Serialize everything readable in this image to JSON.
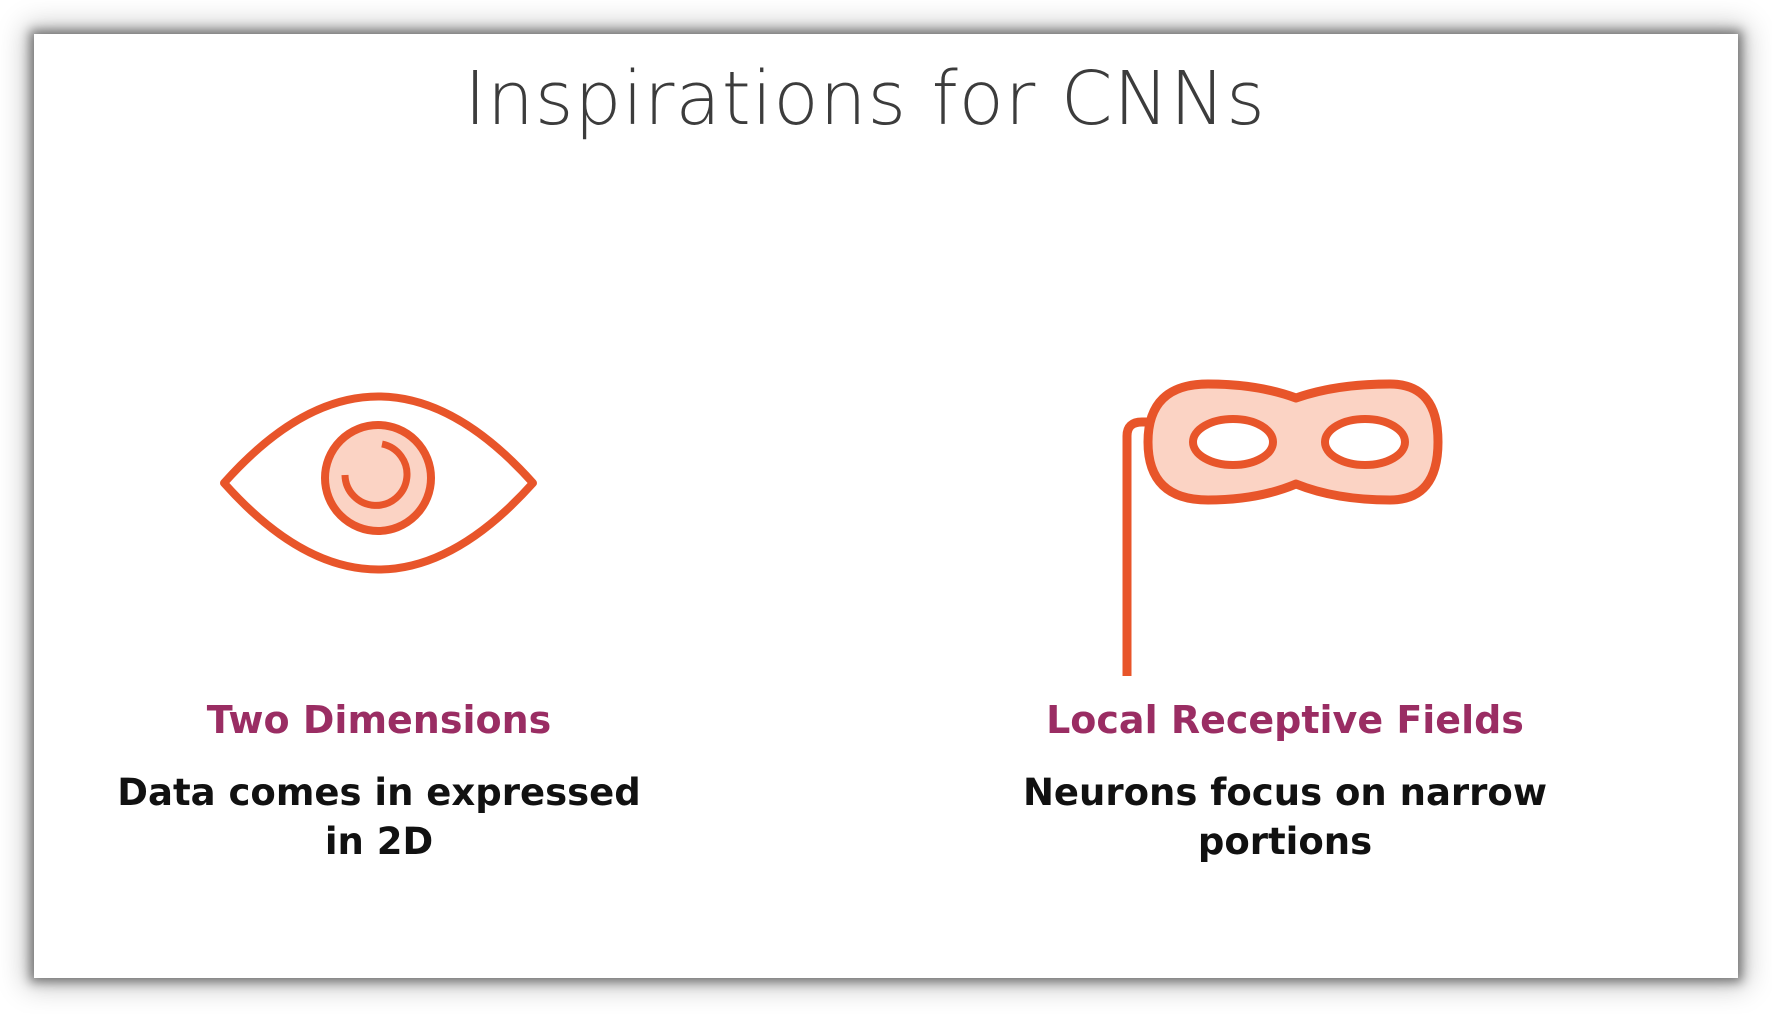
{
  "slide": {
    "title": "Inspirations for CNNs"
  },
  "colors": {
    "icon_stroke": "#e8552a",
    "icon_fill": "#fbd3c4",
    "heading": "#9a2d63",
    "body_text": "#111111",
    "title_text": "#3c3c3c"
  },
  "items": [
    {
      "icon": "eye-icon",
      "heading": "Two Dimensions",
      "text_line1": "Data comes in expressed",
      "text_line2": "in 2D"
    },
    {
      "icon": "masquerade-mask-icon",
      "heading": "Local Receptive Fields",
      "text_line1": "Neurons focus on narrow",
      "text_line2": "portions"
    }
  ]
}
